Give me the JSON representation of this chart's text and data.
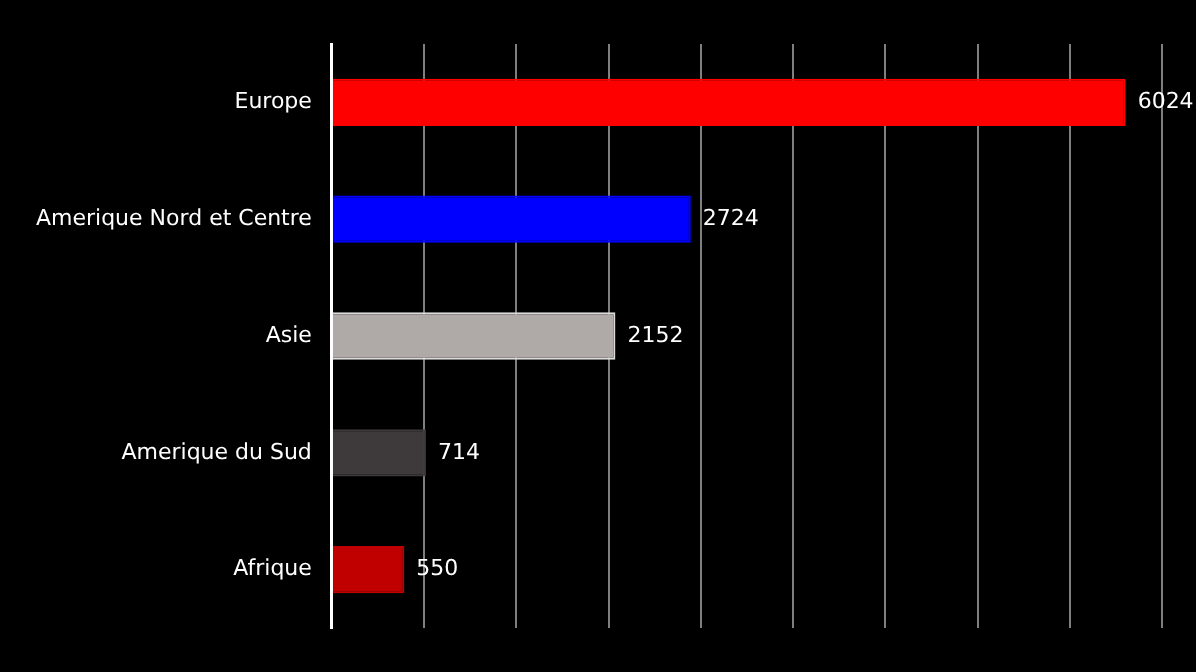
{
  "chart_data": {
    "type": "bar",
    "orientation": "horizontal",
    "categories": [
      "Europe",
      "Amerique Nord et Centre",
      "Asie",
      "Amerique du Sud",
      "Afrique"
    ],
    "values": [
      6024,
      2724,
      2152,
      714,
      550
    ],
    "colors": [
      "#ff0000",
      "#0000ff",
      "#afaaa8",
      "#3e3a3b",
      "#c00000"
    ],
    "xlim": [
      0,
      6300
    ],
    "xticks": [
      {
        "value": 0,
        "label": null
      },
      {
        "value": 700,
        "label": null
      },
      {
        "value": 1400,
        "label": null
      },
      {
        "value": 2100,
        "label": null
      },
      {
        "value": 2800,
        "label": null
      },
      {
        "value": 3500,
        "label": null
      },
      {
        "value": 4200,
        "label": null
      },
      {
        "value": 4900,
        "label": null
      },
      {
        "value": 5600,
        "label": null
      },
      {
        "value": 6300,
        "label": null
      }
    ],
    "tick_labels": "y",
    "grid": "x",
    "legend": false,
    "data_labels": true
  }
}
